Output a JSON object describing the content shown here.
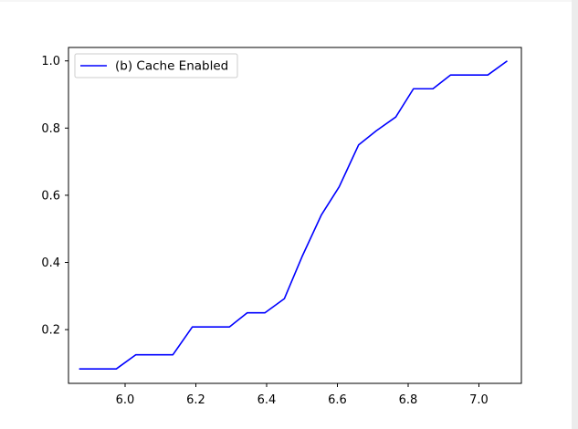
{
  "chart_data": {
    "type": "line",
    "title": "",
    "xlabel": "",
    "ylabel": "",
    "xlim": [
      5.84,
      7.12
    ],
    "ylim": [
      0.04,
      1.04
    ],
    "xticks": [
      "6.0",
      "6.2",
      "6.4",
      "6.6",
      "6.8",
      "7.0"
    ],
    "yticks": [
      "0.2",
      "0.4",
      "0.6",
      "0.8",
      "1.0"
    ],
    "grid": false,
    "legend_position": "top-left",
    "series": [
      {
        "name": "(b) Cache Enabled",
        "color": "#0000ff",
        "x": [
          5.87,
          5.92,
          5.975,
          6.03,
          6.08,
          6.135,
          6.19,
          6.24,
          6.295,
          6.345,
          6.395,
          6.45,
          6.5,
          6.555,
          6.605,
          6.66,
          6.71,
          6.765,
          6.815,
          6.87,
          6.92,
          6.975,
          7.025,
          7.08
        ],
        "y": [
          0.083,
          0.083,
          0.083,
          0.125,
          0.125,
          0.125,
          0.208,
          0.208,
          0.208,
          0.25,
          0.25,
          0.292,
          0.417,
          0.542,
          0.625,
          0.75,
          0.792,
          0.833,
          0.917,
          0.917,
          0.958,
          0.958,
          0.958,
          1.0
        ]
      }
    ]
  }
}
